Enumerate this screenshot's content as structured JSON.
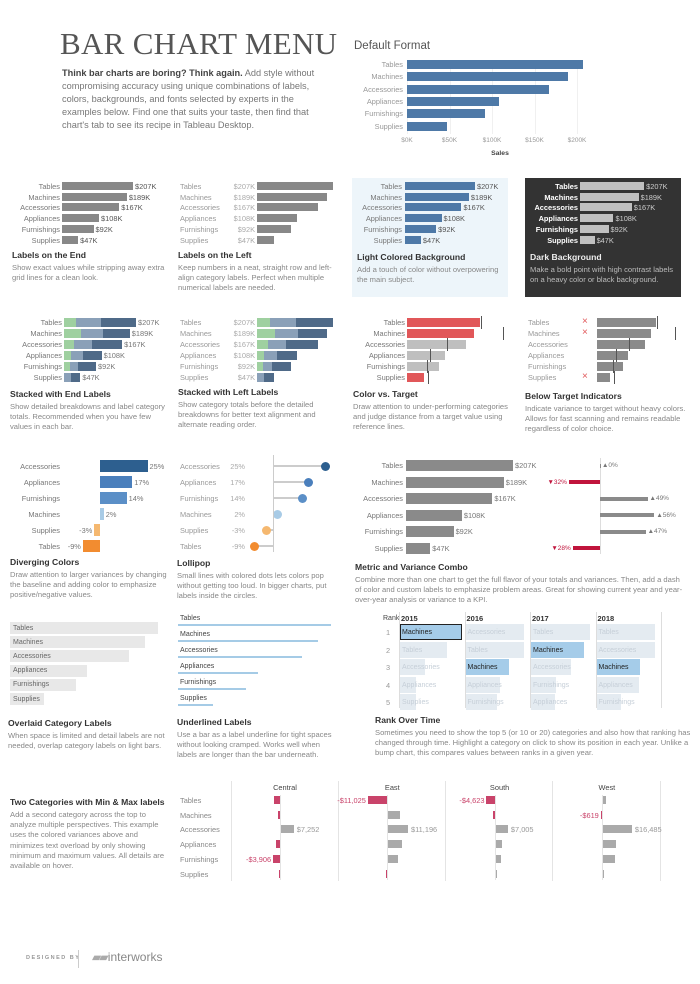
{
  "header": {
    "title": "BAR CHART MENU",
    "intro_bold": "Think bar charts are boring? Think again.",
    "intro_rest": " Add style without compromising accuracy using unique combinations of labels, colors, backgrounds, and fonts selected by experts in the examples below. Find one that suits your taste, then find that chart's tab to see its recipe in Tableau Desktop."
  },
  "colors": {
    "blue": "#4e79a7",
    "gray": "#8a8a8a",
    "red": "#e15759",
    "dark_red": "#c0143c",
    "highlight": "#a5cce9",
    "dark_bg": "#333333",
    "light_bg": "#edf5fa"
  },
  "categories": [
    "Tables",
    "Machines",
    "Accessories",
    "Appliances",
    "Furnishings",
    "Supplies"
  ],
  "sales_k": [
    207,
    189,
    167,
    108,
    92,
    47
  ],
  "sales_labels": [
    "$207K",
    "$189K",
    "$167K",
    "$108K",
    "$92K",
    "$47K"
  ],
  "chart_data": [
    {
      "id": "default",
      "type": "bar",
      "title": "Default Format",
      "xlabel": "Sales",
      "xlim": [
        0,
        220
      ],
      "ticks": [
        "$0K",
        "$50K",
        "$100K",
        "$150K",
        "$200K"
      ],
      "tick_values": [
        0,
        50,
        100,
        150,
        200
      ],
      "grid": true
    },
    {
      "id": "stacked",
      "type": "bar",
      "stacked": true,
      "segments_k": [
        [
          35,
          70,
          102
        ],
        [
          50,
          62,
          77
        ],
        [
          30,
          50,
          87
        ],
        [
          19,
          36,
          53
        ],
        [
          16,
          25,
          51
        ],
        [
          0,
          19,
          28
        ]
      ],
      "segment_colors": [
        "#9fd0a0",
        "#8aa0b8",
        "#4f6a88"
      ]
    },
    {
      "id": "targets",
      "type": "bar",
      "target_k": [
        210,
        272,
        113,
        65,
        57,
        60
      ]
    },
    {
      "id": "diverging",
      "type": "bar",
      "categories": [
        "Accessories",
        "Appliances",
        "Furnishings",
        "Machines",
        "Supplies",
        "Tables"
      ],
      "values": [
        25,
        17,
        14,
        2,
        -3,
        -9
      ],
      "labels": [
        "25%",
        "17%",
        "14%",
        "2%",
        "-3%",
        "-9%"
      ],
      "colors": [
        "#2d5f8f",
        "#4a7fbc",
        "#5b8fc7",
        "#a8cbe6",
        "#f5b870",
        "#f28c30"
      ]
    },
    {
      "id": "variance",
      "type": "bar",
      "values": [
        0,
        -32,
        49,
        56,
        47,
        -28
      ],
      "labels": [
        "▲0%",
        "▼32%",
        "▲49%",
        "▲56%",
        "▲47%",
        "▼28%"
      ]
    },
    {
      "id": "rank",
      "type": "table",
      "rank_header": "Rank",
      "ranks": [
        "1",
        "2",
        "3",
        "4",
        "5"
      ],
      "highlight": "Machines",
      "years": [
        {
          "year": "2015",
          "items": [
            "Machines",
            "Tables",
            "Accessories",
            "Appliances",
            "Supplies"
          ],
          "share": [
            1.0,
            0.75,
            0.4,
            0.25,
            0.25
          ]
        },
        {
          "year": "2016",
          "items": [
            "Accessories",
            "Tables",
            "Machines",
            "Appliances",
            "Furnishings"
          ],
          "share": [
            0.95,
            0.95,
            0.7,
            0.55,
            0.5
          ]
        },
        {
          "year": "2017",
          "items": [
            "Tables",
            "Machines",
            "Accessories",
            "Furnishings",
            "Appliances"
          ],
          "share": [
            0.95,
            0.85,
            0.65,
            0.4,
            0.38
          ]
        },
        {
          "year": "2018",
          "items": [
            "Tables",
            "Accessories",
            "Machines",
            "Appliances",
            "Furnishings"
          ],
          "share": [
            0.95,
            0.95,
            0.7,
            0.68,
            0.4
          ]
        }
      ]
    },
    {
      "id": "regions",
      "type": "bar",
      "regions": [
        {
          "name": "Central",
          "values": [
            -3400,
            -1000,
            7252,
            -2000,
            -3906,
            -500
          ],
          "labels": [
            "",
            "",
            "$7,252",
            "",
            "-$3,906",
            ""
          ]
        },
        {
          "name": "East",
          "values": [
            -11025,
            6500,
            11196,
            8000,
            5500,
            -800
          ],
          "labels": [
            "-$11,025",
            "",
            "$11,196",
            "",
            "",
            ""
          ]
        },
        {
          "name": "South",
          "values": [
            -4623,
            -1000,
            7005,
            3700,
            2800,
            300
          ],
          "labels": [
            "-$4,623",
            "",
            "$7,005",
            "",
            "",
            ""
          ]
        },
        {
          "name": "West",
          "values": [
            1500,
            -619,
            16485,
            7500,
            7000,
            500
          ],
          "labels": [
            "",
            "-$619",
            "$16,485",
            "",
            "",
            ""
          ]
        }
      ]
    }
  ],
  "panels": {
    "end": {
      "title": "Labels on the End",
      "desc": "Show exact values while stripping away extra grid lines for a clean look."
    },
    "left": {
      "title": "Labels on the Left",
      "desc": "Keep numbers in a neat, straight row and left-align category labels. Perfect when multiple numerical labels are needed."
    },
    "light": {
      "title": "Light Colored Background",
      "desc": "Add a touch of color without overpowering the main subject."
    },
    "dark": {
      "title": "Dark Background",
      "desc": "Make a bold point with high contrast labels on a heavy color or black background."
    },
    "stacked_end": {
      "title": "Stacked with End Labels",
      "desc": "Show detailed breakdowns and label category totals. Recommended when you have few values in each bar."
    },
    "stacked_left": {
      "title": "Stacked with Left Labels",
      "desc": "Show category totals before the detailed breakdowns for better text alignment and alternate reading order."
    },
    "color_target": {
      "title": "Color vs. Target",
      "desc": "Draw attention to under-performing categories and judge distance from a target value using reference lines."
    },
    "below_target": {
      "title": "Below Target Indicators",
      "desc": "Indicate variance to target without heavy colors. Allows for fast scanning and remains readable regardless of color choice."
    },
    "diverging": {
      "title": "Diverging Colors",
      "desc": "Draw attention to larger variances by changing the baseline and adding color to emphasize positive/negative values."
    },
    "lollipop": {
      "title": "Lollipop",
      "desc": "Small lines with colored dots lets colors pop without getting too loud. In bigger charts, put labels inside the circles."
    },
    "metric": {
      "title": "Metric and Variance Combo",
      "desc": "Combine more than one chart to get the full flavor of your totals and variances. Then, add a dash of color and custom labels to emphasize problem areas. Great for showing current year and year-over-year analysis or variance to a KPI."
    },
    "overlaid": {
      "title": "Overlaid Category Labels",
      "desc": "When space is limited and detail labels are not needed, overlap category labels on light bars."
    },
    "underlined": {
      "title": "Underlined Labels",
      "desc": "Use a bar as a label underline for tight spaces without looking cramped. Works well when labels are longer than the bar underneath."
    },
    "rank": {
      "title": "Rank Over Time",
      "desc": "Sometimes you need to show the top 5 (or 10 or 20) categories and also how that ranking has changed through time. Highlight a category on click to show its position in each year. Unlike a bump chart, this compares values between ranks in a given year."
    },
    "two_cat": {
      "title": "Two Categories with Min & Max labels",
      "desc": "Add a second category across the top to analyze multiple perspectives. This example uses the colored variances above and minimizes text overload by only showing minimum and maximum values. All details are available on hover."
    }
  },
  "footer": {
    "designed_by": "DESIGNED BY",
    "logo": "interworks"
  }
}
